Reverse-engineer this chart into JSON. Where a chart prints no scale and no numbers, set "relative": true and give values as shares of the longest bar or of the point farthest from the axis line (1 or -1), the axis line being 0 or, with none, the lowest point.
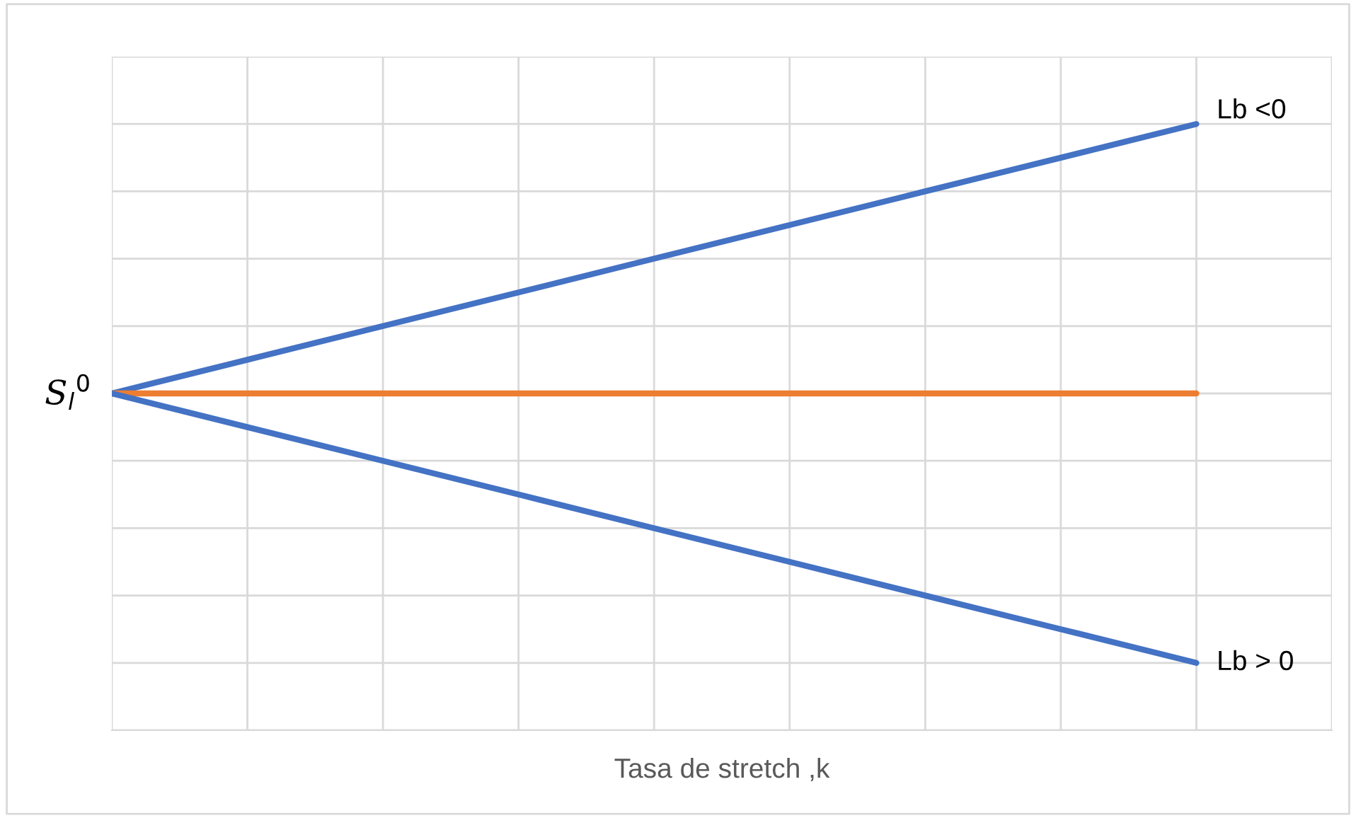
{
  "chart_data": {
    "type": "line",
    "relative": true,
    "xlabel": "Tasa de stretch ,k",
    "categories": [
      null,
      null,
      null,
      null,
      null,
      null,
      null,
      null,
      null
    ],
    "series": [
      {
        "name": "Lb <0",
        "color": "#4472c4",
        "values": [
          0.5556,
          0.6111,
          0.6667,
          0.7222,
          0.7778,
          0.8333,
          0.8889,
          0.9444,
          1
        ]
      },
      {
        "color": "#ed7d31",
        "values": [
          0.5556,
          0.5556,
          0.5556,
          0.5556,
          0.5556,
          0.5556,
          0.5556,
          0.5556,
          0.5556
        ]
      },
      {
        "name": "Lb > 0",
        "color": "#4472c4",
        "values": [
          0.5556,
          0.5,
          0.4444,
          0.3889,
          0.3333,
          0.2778,
          0.2222,
          0.1667,
          0.1111
        ]
      }
    ],
    "annotations": [
      "S$_{l}$$^{0}$"
    ],
    "grid": true,
    "marker": "none",
    "line_style": "solid",
    "legend": false
  }
}
